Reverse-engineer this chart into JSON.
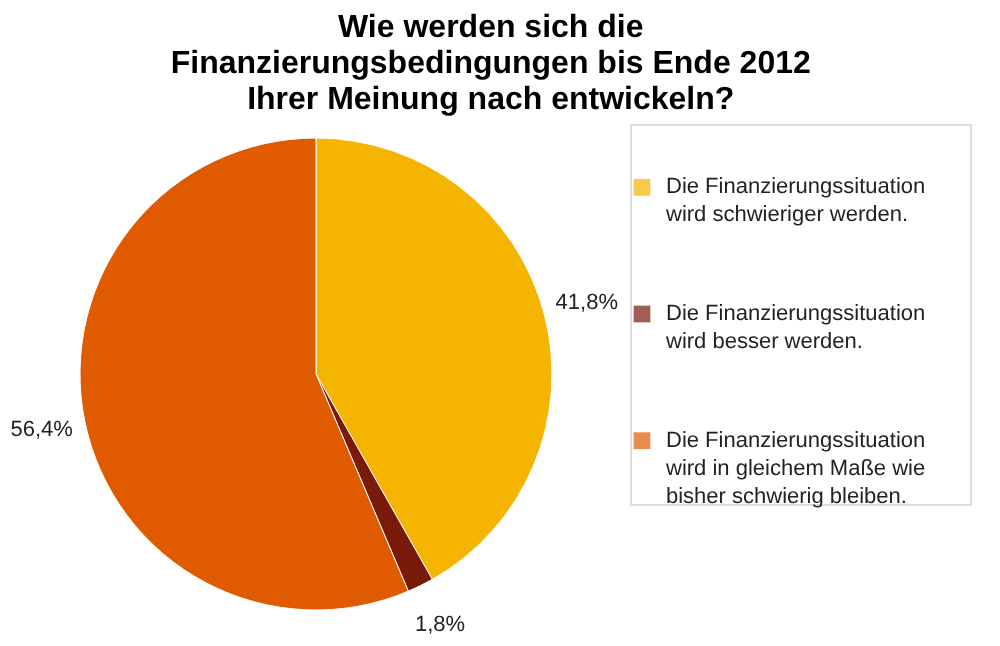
{
  "chart_data": {
    "type": "pie",
    "title": "Wie werden sich die Finanzierungsbedingungen bis Ende 2012 Ihrer Meinung nach entwickeln?",
    "categories": [
      "Die Finanzierungssituation wird schwieriger werden.",
      "Die Finanzierungssituation wird besser werden.",
      "Die Finanzierungssituation wird in gleichem Maße wie bisher schwierig bleiben."
    ],
    "values": [
      41.8,
      1.8,
      56.4
    ],
    "colors": [
      "#f5b400",
      "#7a1a0a",
      "#e05a00"
    ],
    "value_labels": [
      "41,8%",
      "1,8%",
      "56,4%"
    ],
    "legend": "right"
  }
}
